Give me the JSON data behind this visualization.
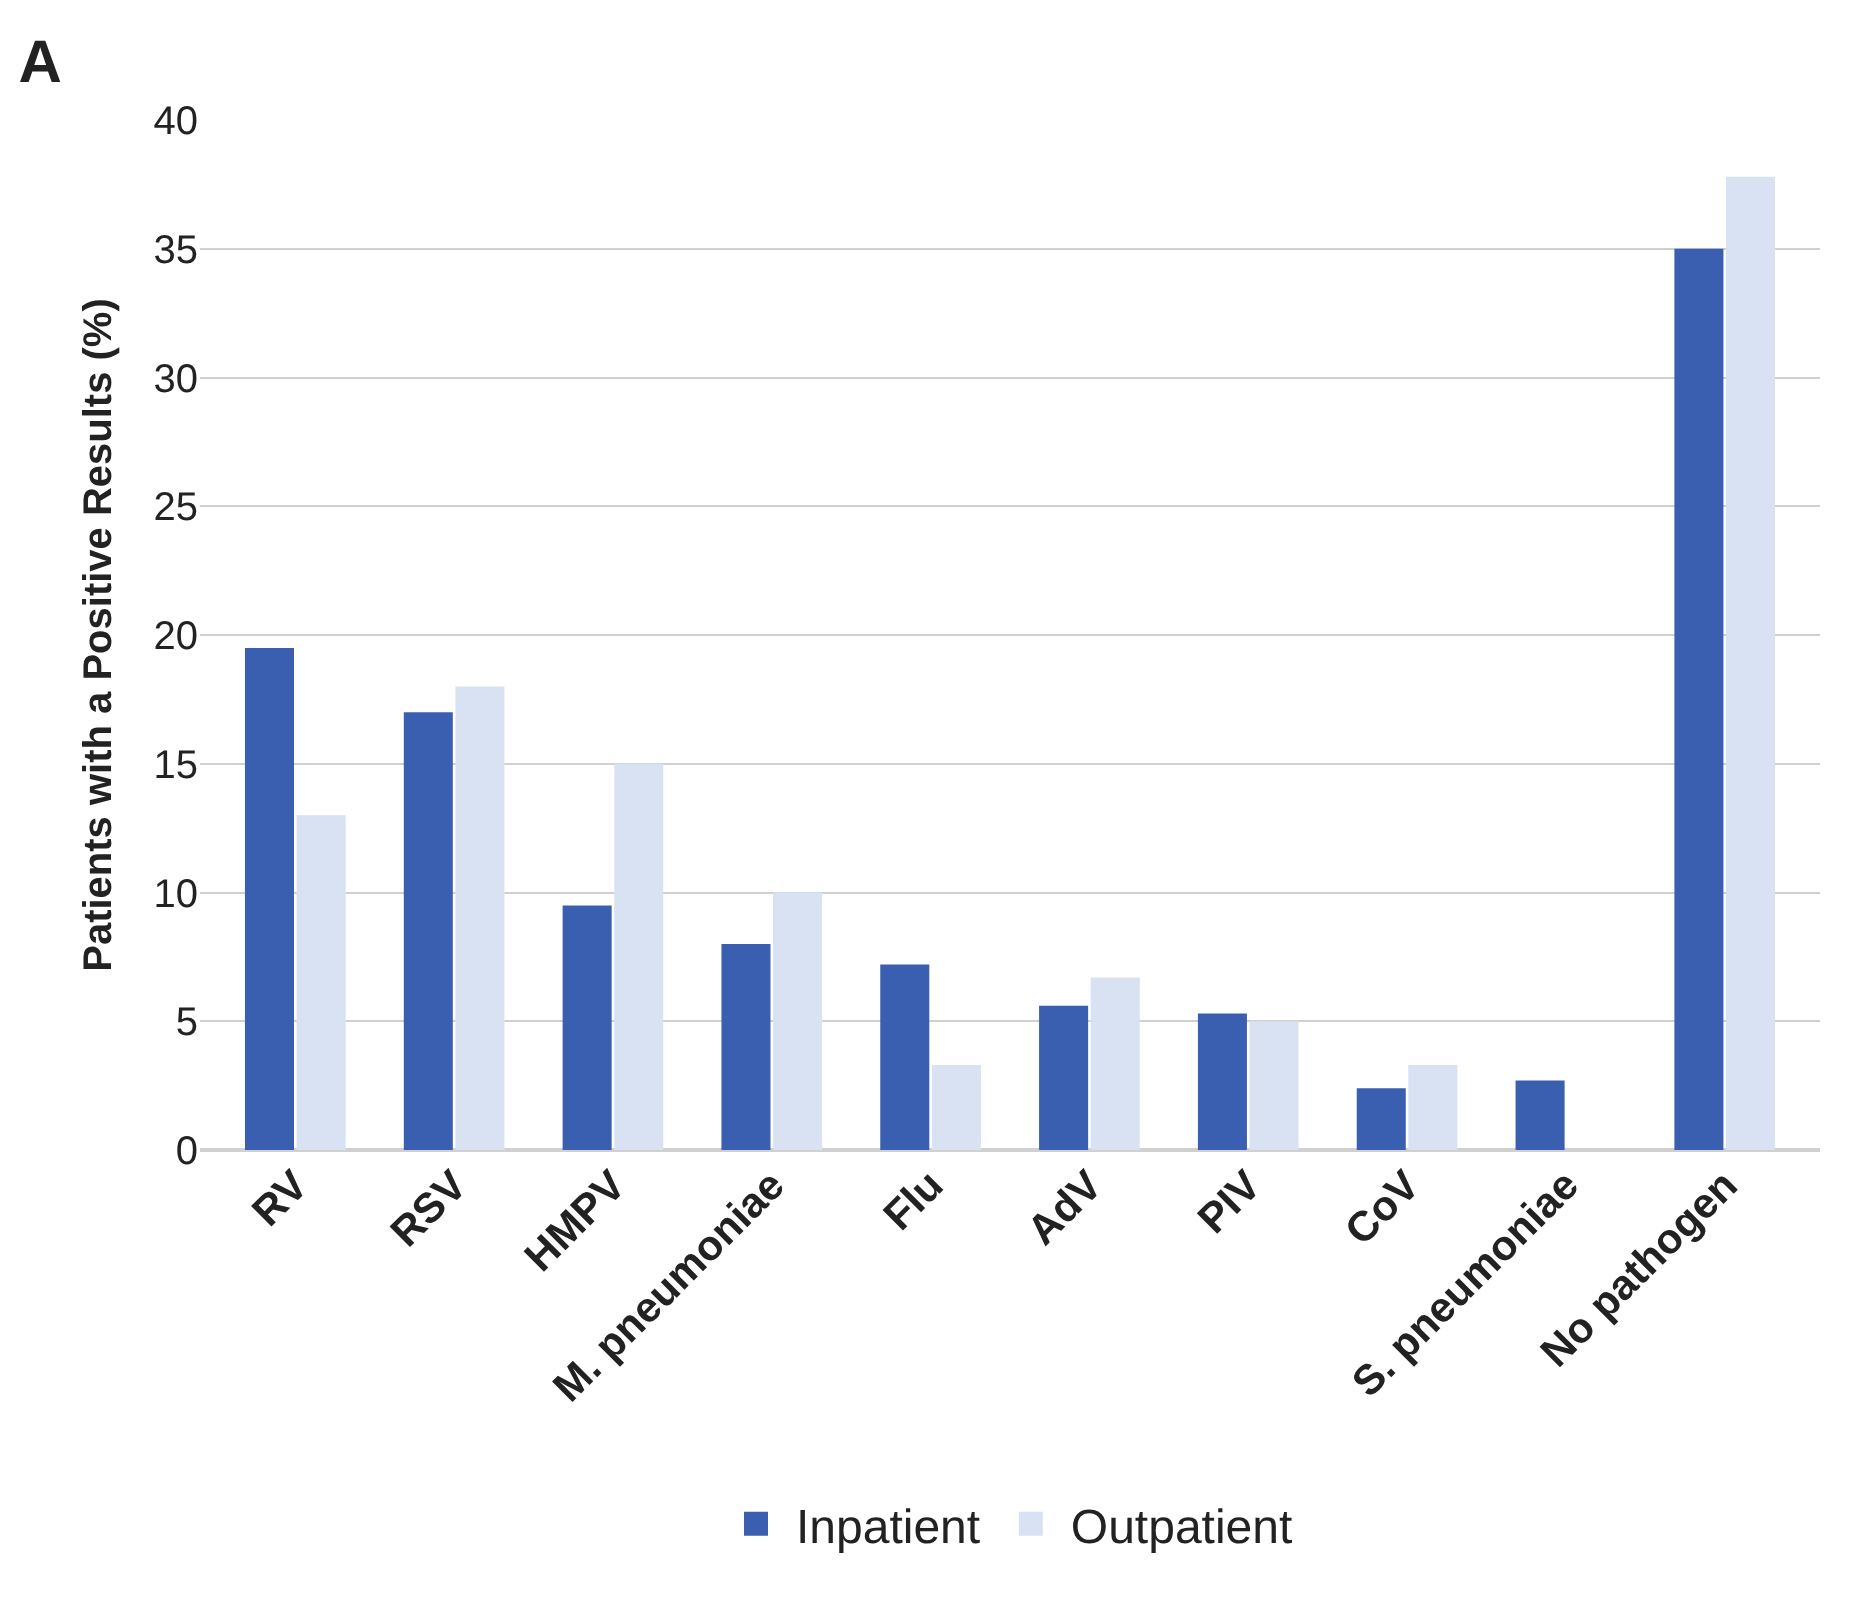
{
  "chart_data": {
    "type": "bar",
    "title": "A",
    "ylabel": "Patients with a Positive Results (%)",
    "categories": [
      "RV",
      "RSV",
      "HMPV",
      "M. pneumoniae",
      "Flu",
      "AdV",
      "PIV",
      "CoV",
      "S. pneumoniae",
      "No pathogen"
    ],
    "series": [
      {
        "name": "Inpatient",
        "color": "#3a5fb0",
        "values": [
          19.5,
          17,
          9.5,
          8,
          7.2,
          5.6,
          5.3,
          2.4,
          2.7,
          35
        ]
      },
      {
        "name": "Outpatient",
        "color": "#d9e2f3",
        "values": [
          13,
          18,
          15,
          10,
          3.3,
          6.7,
          5,
          3.3,
          0,
          37.8
        ]
      }
    ],
    "ylim": [
      0,
      40
    ],
    "yticks": [
      0,
      5,
      10,
      15,
      20,
      25,
      30,
      35,
      40
    ],
    "grid": "y",
    "legend": "bottom"
  }
}
